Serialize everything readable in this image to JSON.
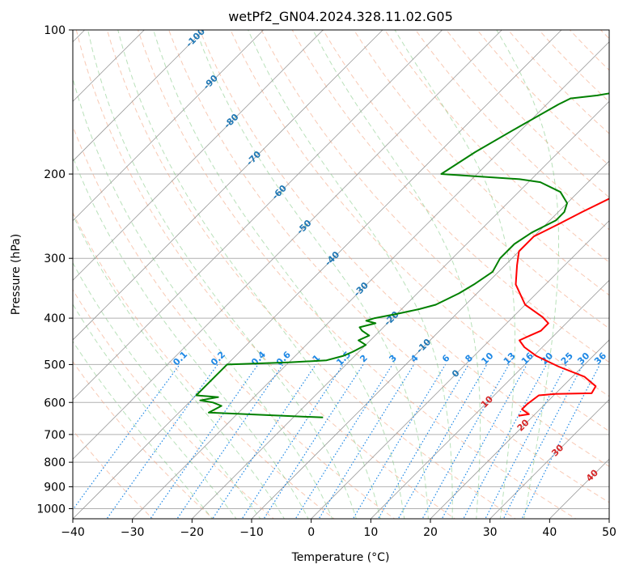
{
  "chart_data": {
    "type": "line",
    "title": "wetPf2_GN04.2024.328.11.02.G05",
    "xlabel": "Temperature (°C)",
    "ylabel": "Pressure (hPa)",
    "xlim": [
      -40,
      50
    ],
    "ylim": [
      1050,
      100
    ],
    "y_scale": "log",
    "x_ticks": [
      -40,
      -30,
      -20,
      -10,
      0,
      10,
      20,
      30,
      40,
      50
    ],
    "y_ticks": [
      1000,
      900,
      800,
      700,
      600,
      500,
      400,
      300,
      200,
      100
    ],
    "grid": true,
    "series": [
      {
        "color": "#ff0000",
        "points": [
          [
            17.5,
            640
          ],
          [
            19.0,
            635
          ],
          [
            17.0,
            620
          ],
          [
            17.0,
            605
          ],
          [
            17.5,
            580
          ],
          [
            20.0,
            576
          ],
          [
            26.0,
            574
          ],
          [
            25.5,
            555
          ],
          [
            22.0,
            530
          ],
          [
            16.0,
            505
          ],
          [
            10.5,
            480
          ],
          [
            7.0,
            460
          ],
          [
            5.0,
            445
          ],
          [
            6.0,
            435
          ],
          [
            7.0,
            425
          ],
          [
            7.0,
            410
          ],
          [
            5.0,
            398
          ],
          [
            0.0,
            375
          ],
          [
            -5.0,
            340
          ],
          [
            -8.0,
            310
          ],
          [
            -10.0,
            290
          ],
          [
            -10.0,
            270
          ],
          [
            -8.0,
            255
          ],
          [
            -6.0,
            240
          ],
          [
            -2.0,
            215
          ],
          [
            5.0,
            180
          ],
          [
            11.0,
            158
          ],
          [
            13.0,
            145
          ],
          [
            15.0,
            133
          ],
          [
            17.0,
            124
          ],
          [
            18.0,
            118
          ],
          [
            19.0,
            112
          ],
          [
            20.0,
            106
          ],
          [
            20.5,
            100
          ]
        ]
      },
      {
        "color": "#008000",
        "points": [
          [
            -15.0,
            645
          ],
          [
            -35.0,
            630
          ],
          [
            -34.0,
            610
          ],
          [
            -36.0,
            600
          ],
          [
            -38.5,
            594
          ],
          [
            -36.0,
            585
          ],
          [
            -40.0,
            580
          ],
          [
            -40.0,
            500
          ],
          [
            -30.0,
            495
          ],
          [
            -24.0,
            490
          ],
          [
            -22.0,
            480
          ],
          [
            -21.0,
            470
          ],
          [
            -20.0,
            455
          ],
          [
            -22.0,
            445
          ],
          [
            -21.0,
            435
          ],
          [
            -23.0,
            425
          ],
          [
            -24.0,
            418
          ],
          [
            -22.0,
            410
          ],
          [
            -24.0,
            405
          ],
          [
            -23.0,
            400
          ],
          [
            -20.0,
            392
          ],
          [
            -17.0,
            383
          ],
          [
            -15.0,
            375
          ],
          [
            -13.0,
            355
          ],
          [
            -12.0,
            340
          ],
          [
            -11.0,
            320
          ],
          [
            -12.0,
            300
          ],
          [
            -12.0,
            280
          ],
          [
            -11.0,
            265
          ],
          [
            -9.0,
            250
          ],
          [
            -9.0,
            240
          ],
          [
            -10.0,
            230
          ],
          [
            -13.0,
            218
          ],
          [
            -18.0,
            208
          ],
          [
            -22.0,
            205
          ],
          [
            -36.0,
            200
          ],
          [
            -34.0,
            180
          ],
          [
            -31.0,
            160
          ],
          [
            -28.0,
            143
          ],
          [
            -27.0,
            139
          ],
          [
            -23.0,
            137
          ],
          [
            -18.0,
            133
          ],
          [
            -15.0,
            128
          ],
          [
            -13.0,
            122
          ],
          [
            -11.0,
            115
          ],
          [
            -8.0,
            110
          ],
          [
            -5.0,
            105
          ],
          [
            -3.0,
            100
          ]
        ]
      }
    ],
    "isotherm_labels": [
      "-100",
      "-90",
      "-80",
      "-70",
      "-60",
      "-50",
      "-40",
      "-30",
      "-20",
      "-10",
      "0",
      "10",
      "20",
      "30",
      "40"
    ],
    "mixing_ratio_labels": [
      "0.1",
      "0.2",
      "0.4",
      "0.6",
      "1",
      "1.5",
      "2",
      "3",
      "4",
      "6",
      "8",
      "10",
      "13",
      "16",
      "20",
      "25",
      "30",
      "36"
    ],
    "colors": {
      "temperature": "#ff0000",
      "dewpoint": "#008000",
      "isotherm": "#1f77b4",
      "isotherm_warm": "#d62728",
      "mixing_ratio": "#1e88e5",
      "dry_adiabat": "#f4a582",
      "moist_adiabat": "#74c476",
      "grid": "#b0b0b0"
    }
  }
}
